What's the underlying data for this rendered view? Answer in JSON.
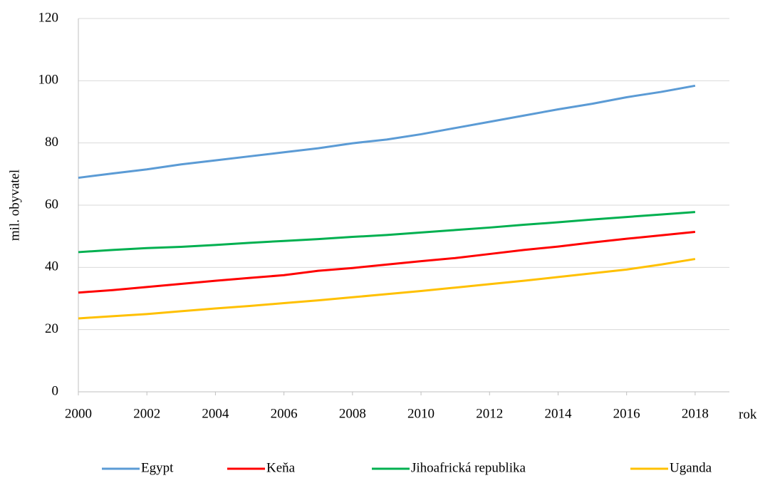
{
  "chart_data": {
    "type": "line",
    "y_label": "mil. obyvatel",
    "x_label": "rok",
    "x": [
      2000,
      2001,
      2002,
      2003,
      2004,
      2005,
      2006,
      2007,
      2008,
      2009,
      2010,
      2011,
      2012,
      2013,
      2014,
      2015,
      2016,
      2017,
      2018
    ],
    "series": [
      {
        "name": "Egypt",
        "color": "#5b9bd5",
        "values": [
          68.8,
          70.2,
          71.5,
          73.1,
          74.4,
          75.7,
          77.0,
          78.3,
          79.9,
          81.1,
          82.8,
          84.8,
          86.8,
          88.8,
          90.8,
          92.6,
          94.7,
          96.4,
          98.4
        ]
      },
      {
        "name": "Keňa",
        "color": "#ff0000",
        "values": [
          31.9,
          32.7,
          33.7,
          34.7,
          35.7,
          36.6,
          37.5,
          38.9,
          39.8,
          40.9,
          42.0,
          43.0,
          44.3,
          45.6,
          46.7,
          48.0,
          49.2,
          50.3,
          51.4
        ]
      },
      {
        "name": "Jihoafrická republika",
        "color": "#00b050",
        "values": [
          44.9,
          45.6,
          46.2,
          46.6,
          47.2,
          47.9,
          48.5,
          49.1,
          49.8,
          50.4,
          51.2,
          52.0,
          52.8,
          53.7,
          54.5,
          55.4,
          56.2,
          57.0,
          57.8
        ]
      },
      {
        "name": "Uganda",
        "color": "#ffc000",
        "values": [
          23.6,
          24.3,
          25.0,
          25.9,
          26.8,
          27.6,
          28.5,
          29.4,
          30.4,
          31.4,
          32.4,
          33.5,
          34.6,
          35.7,
          36.9,
          38.1,
          39.3,
          40.9,
          42.7
        ]
      }
    ],
    "xlim": [
      2000,
      2019
    ],
    "xticks": [
      2000,
      2002,
      2004,
      2006,
      2008,
      2010,
      2012,
      2014,
      2016,
      2018
    ],
    "ylim": [
      0,
      120
    ],
    "yticks": [
      0,
      20,
      40,
      60,
      80,
      100,
      120
    ],
    "grid": true,
    "legend": "bottom"
  }
}
